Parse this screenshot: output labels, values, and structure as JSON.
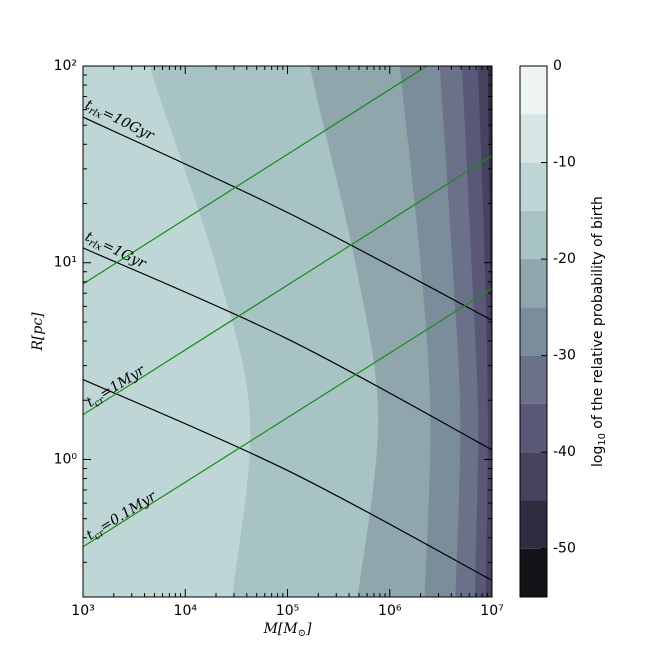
{
  "chart_data": {
    "type": "contour",
    "xlabel": {
      "base": "M[M",
      "sub": "⊙",
      "rest": "]"
    },
    "ylabel": "R[pc]",
    "xlim": [
      1000,
      10000000
    ],
    "ylim": [
      0.2,
      100
    ],
    "log_x": true,
    "log_y": true,
    "xticks": [
      {
        "value": 1000,
        "label": "10³"
      },
      {
        "value": 10000,
        "label": "10⁴"
      },
      {
        "value": 100000,
        "label": "10⁵"
      },
      {
        "value": 1000000,
        "label": "10⁶"
      },
      {
        "value": 10000000,
        "label": "10⁷"
      }
    ],
    "yticks": [
      {
        "value": 1,
        "label": "10⁰"
      },
      {
        "value": 10,
        "label": "10¹"
      },
      {
        "value": 100,
        "label": "10²"
      }
    ],
    "colorbar": {
      "label": {
        "base": "log",
        "sub": "10",
        "rest": " of the relative probability of birth"
      },
      "levels": [
        0,
        -5,
        -10,
        -15,
        -20,
        -25,
        -30,
        -35,
        -40,
        -45,
        -50,
        -55
      ],
      "colors": [
        "#eef4f4",
        "#d8e6e6",
        "#bed6d6",
        "#a7c3c4",
        "#8fa6ad",
        "#7b8c9b",
        "#6a7189",
        "#5a5877",
        "#47435f",
        "#2f2c3f",
        "#141418"
      ],
      "ticks": [
        0,
        -10,
        -20,
        -30,
        -40,
        -50
      ]
    },
    "contour_R": [
      100,
      10,
      1.6,
      0.2
    ],
    "contours": [
      {
        "level": -15,
        "M": [
          4500,
          19600,
          43000,
          29000
        ]
      },
      {
        "level": -20,
        "M": [
          166000,
          460000,
          770000,
          490000
        ]
      },
      {
        "level": -25,
        "M": [
          1260000,
          2000000,
          2500000,
          2200000
        ]
      },
      {
        "level": -30,
        "M": [
          3100000,
          4100000,
          4900000,
          4400000
        ]
      },
      {
        "level": -35,
        "M": [
          5100000,
          6300000,
          7300000,
          6800000
        ]
      },
      {
        "level": -40,
        "M": [
          7300000,
          8500000,
          9100000,
          8700000
        ]
      },
      {
        "level": -45,
        "M": [
          9100000,
          9600000,
          9900000,
          9900000
        ]
      }
    ],
    "lines": [
      {
        "color": "#000000",
        "M": [
          1000,
          100000,
          10000000
        ],
        "R": [
          55,
          18,
          5.1
        ],
        "label": {
          "base": "t",
          "sub": "rlx",
          "rest": "=10Gyr"
        }
      },
      {
        "color": "#000000",
        "M": [
          1000,
          100000,
          10000000
        ],
        "R": [
          11.9,
          4.1,
          1.12
        ],
        "label": {
          "base": "t",
          "sub": "rlx",
          "rest": "=1Gyr"
        }
      },
      {
        "color": "#000000",
        "M": [
          1000,
          100000,
          10000000
        ],
        "R": [
          2.55,
          0.88,
          0.243
        ]
      },
      {
        "color": "#1a8a1a",
        "M": [
          1000,
          2300000
        ],
        "R": [
          7.8,
          100
        ]
      },
      {
        "color": "#1a8a1a",
        "M": [
          1000,
          10000000
        ],
        "R": [
          1.69,
          35
        ],
        "label": {
          "base": "t",
          "sub": "cr",
          "rest": "=1Myr"
        }
      },
      {
        "color": "#1a8a1a",
        "M": [
          1000,
          10000000
        ],
        "R": [
          0.36,
          7.4
        ],
        "label": {
          "base": "t",
          "sub": "cr",
          "rest": "=0.1Myr"
        }
      }
    ]
  }
}
